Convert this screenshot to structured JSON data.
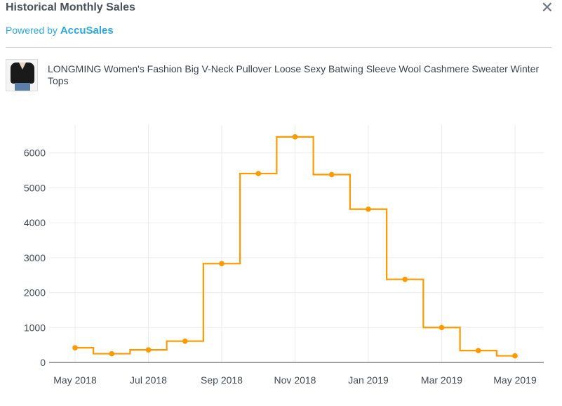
{
  "header": {
    "title": "Historical Monthly Sales",
    "powered_prefix": "Powered by ",
    "brand": "AccuSales",
    "close_glyph": "✕"
  },
  "product": {
    "name": "LONGMING Women's Fashion Big V-Neck Pullover Loose Sexy Batwing Sleeve Wool Cashmere Sweater Winter Tops"
  },
  "colors": {
    "line": "#ff9900",
    "brand": "#2aa9e0",
    "grid": "#ececec"
  },
  "chart_data": {
    "type": "line",
    "step": true,
    "x": [
      "2018-05",
      "2018-06",
      "2018-07",
      "2018-08",
      "2018-09",
      "2018-10",
      "2018-11",
      "2018-12",
      "2019-01",
      "2019-02",
      "2019-03",
      "2019-04",
      "2019-05"
    ],
    "series": [
      {
        "values": [
          420,
          250,
          360,
          610,
          2830,
          5410,
          6460,
          5380,
          4390,
          2380,
          1000,
          340,
          190
        ]
      }
    ],
    "x_ticks": [
      {
        "x": "2018-05",
        "label": "May 2018"
      },
      {
        "x": "2018-07",
        "label": "Jul 2018"
      },
      {
        "x": "2018-09",
        "label": "Sep 2018"
      },
      {
        "x": "2018-11",
        "label": "Nov 2018"
      },
      {
        "x": "2019-01",
        "label": "Jan 2019"
      },
      {
        "x": "2019-03",
        "label": "Mar 2019"
      },
      {
        "x": "2019-05",
        "label": "May 2019"
      }
    ],
    "y_ticks": [
      "0",
      "1000",
      "2000",
      "3000",
      "4000",
      "5000",
      "6000"
    ],
    "ylim": [
      0,
      7000
    ],
    "xlim": [
      "2018-04",
      "2019-05"
    ],
    "grid": true,
    "title": "",
    "xlabel": "",
    "ylabel": ""
  }
}
